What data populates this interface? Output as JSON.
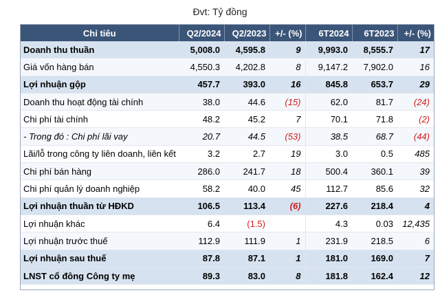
{
  "unit_label": "Đvt: Tỷ đồng",
  "headers": [
    "Chỉ tiêu",
    "Q2/2024",
    "Q2/2023",
    "+/- (%)",
    "6T2024",
    "6T2023",
    "+/- (%)"
  ],
  "rows": [
    {
      "label": "Doanh thu thuần",
      "bold": true,
      "cells": [
        "5,008.0",
        "4,595.8",
        "9",
        "9,993.0",
        "8,555.7",
        "17"
      ]
    },
    {
      "label": "Giá vốn hàng bán",
      "bold": false,
      "cells": [
        "4,550.3",
        "4,202.8",
        "8",
        "9,147.2",
        "7,902.0",
        "16"
      ]
    },
    {
      "label": "Lợi nhuận gộp",
      "bold": true,
      "cells": [
        "457.7",
        "393.0",
        "16",
        "845.8",
        "653.7",
        "29"
      ]
    },
    {
      "label": "Doanh thu hoạt động tài chính",
      "bold": false,
      "cells": [
        "38.0",
        "44.6",
        "(15)",
        "62.0",
        "81.7",
        "(24)"
      ]
    },
    {
      "label": "Chi phí tài chính",
      "bold": false,
      "cells": [
        "48.2",
        "45.2",
        "7",
        "70.1",
        "71.8",
        "(2)"
      ]
    },
    {
      "label": "- Trong đó : Chi phí lãi vay",
      "bold": false,
      "italic": true,
      "cells": [
        "20.7",
        "44.5",
        "(53)",
        "38.5",
        "68.7",
        "(44)"
      ]
    },
    {
      "label": "Lãi/lỗ trong công ty liên doanh, liên kết",
      "bold": false,
      "cells": [
        "3.2",
        "2.7",
        "19",
        "3.0",
        "0.5",
        "485"
      ]
    },
    {
      "label": "Chi phí bán hàng",
      "bold": false,
      "cells": [
        "286.0",
        "241.7",
        "18",
        "500.4",
        "360.1",
        "39"
      ]
    },
    {
      "label": "Chi phí quản lý doanh nghiệp",
      "bold": false,
      "cells": [
        "58.2",
        "40.0",
        "45",
        "112.7",
        "85.6",
        "32"
      ]
    },
    {
      "label": "Lợi nhuận thuần từ HĐKD",
      "bold": true,
      "cells": [
        "106.5",
        "113.4",
        "(6)",
        "227.6",
        "218.4",
        "4"
      ]
    },
    {
      "label": "Lợi nhuận khác",
      "bold": false,
      "cells": [
        "6.4",
        "(1.5)",
        "",
        "4.3",
        "0.03",
        "12,435"
      ]
    },
    {
      "label": "Lợi nhuận trước thuế",
      "bold": false,
      "cells": [
        "112.9",
        "111.9",
        "1",
        "231.9",
        "218.5",
        "6"
      ]
    },
    {
      "label": "Lợi nhuận sau thuế",
      "bold": true,
      "cells": [
        "87.8",
        "87.1",
        "1",
        "181.0",
        "169.0",
        "7"
      ]
    },
    {
      "label": "LNST cổ đông Công ty mẹ",
      "bold": true,
      "cells": [
        "89.3",
        "83.0",
        "8",
        "181.8",
        "162.4",
        "12"
      ]
    }
  ],
  "colors": {
    "header_bg": "#3b5578",
    "bold_row_bg": "#d6e2ef",
    "negative": "#d01b1b"
  }
}
